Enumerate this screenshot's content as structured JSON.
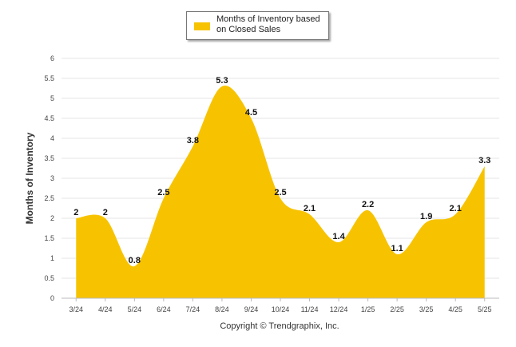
{
  "chart_data": {
    "type": "area",
    "categories": [
      "3/24",
      "4/24",
      "5/24",
      "6/24",
      "7/24",
      "8/24",
      "9/24",
      "10/24",
      "11/24",
      "12/24",
      "1/25",
      "2/25",
      "3/25",
      "4/25",
      "5/25"
    ],
    "series": [
      {
        "name": "Months of Inventory based on Closed Sales",
        "values": [
          2,
          2,
          0.8,
          2.5,
          3.8,
          5.3,
          4.5,
          2.5,
          2.1,
          1.4,
          2.2,
          1.1,
          1.9,
          2.1,
          3.3
        ]
      }
    ],
    "data_labels": [
      "2",
      "2",
      "0.8",
      "2.5",
      "3.8",
      "5.3",
      "4.5",
      "2.5",
      "2.1",
      "1.4",
      "2.2",
      "1.1",
      "1.9",
      "2.1",
      "3.3"
    ],
    "yticks": [
      "0",
      "0.5",
      "1",
      "1.5",
      "2",
      "2.5",
      "3",
      "3.5",
      "4",
      "4.5",
      "5",
      "5.5",
      "6"
    ],
    "ylabel": "Months of Inventory",
    "xlabel": "",
    "ylim": [
      0,
      6
    ],
    "grid": true,
    "legend": "top-center",
    "colors": {
      "fill": "#f7c300",
      "grid": "#e6e6e6",
      "axis": "#bbbbbb"
    }
  },
  "legend_label": "Months of Inventory based on Closed Sales",
  "footer": "Copyright © Trendgraphix, Inc."
}
